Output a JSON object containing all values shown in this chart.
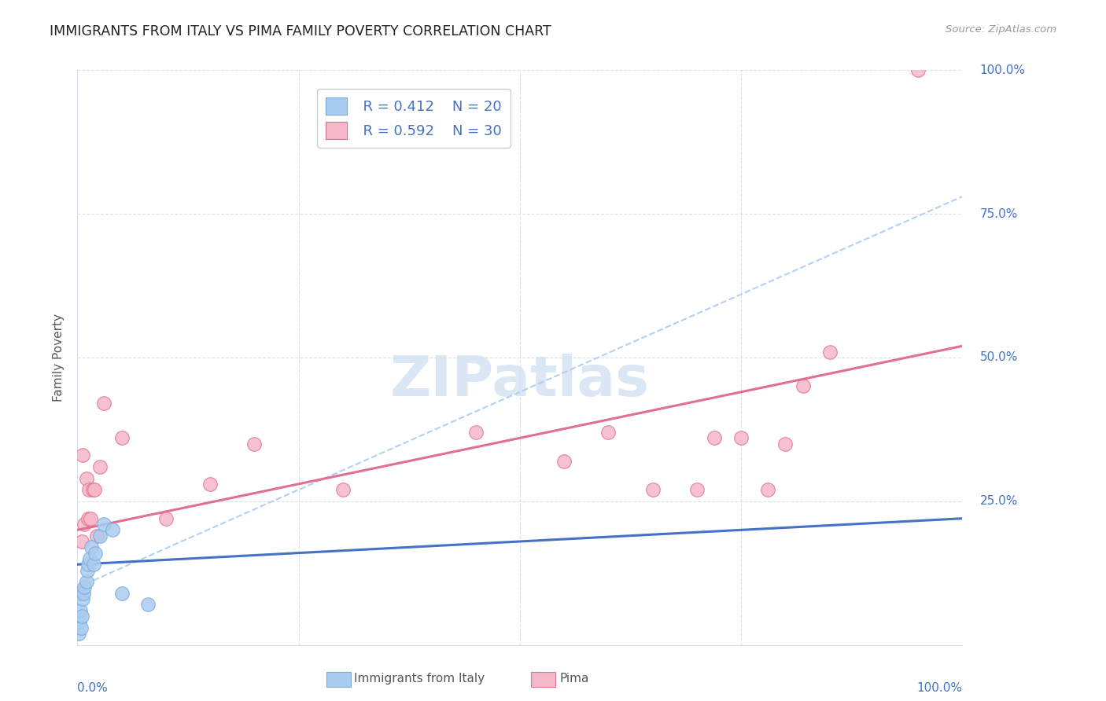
{
  "title": "IMMIGRANTS FROM ITALY VS PIMA FAMILY POVERTY CORRELATION CHART",
  "source": "Source: ZipAtlas.com",
  "ylabel": "Family Poverty",
  "yticks_labels": [
    "0.0%",
    "25.0%",
    "50.0%",
    "75.0%",
    "100.0%"
  ],
  "ytick_vals": [
    0,
    25,
    50,
    75,
    100
  ],
  "xlim": [
    0,
    100
  ],
  "ylim": [
    0,
    100
  ],
  "italy_color": "#aaccf0",
  "italy_edge_color": "#7aaad8",
  "pima_color": "#f5b8c8",
  "pima_edge_color": "#e07090",
  "italy_line_color": "#4472c4",
  "pima_line_color": "#e07090",
  "dash_line_color": "#aaccf0",
  "italy_x": [
    0.1,
    0.2,
    0.3,
    0.4,
    0.5,
    0.6,
    0.7,
    0.8,
    1.0,
    1.1,
    1.2,
    1.4,
    1.6,
    1.8,
    2.0,
    2.5,
    3.0,
    4.0,
    5.0,
    8.0
  ],
  "italy_y": [
    2.0,
    4.0,
    6.0,
    3.0,
    5.0,
    8.0,
    9.0,
    10.0,
    11.0,
    13.0,
    14.0,
    15.0,
    17.0,
    14.0,
    16.0,
    19.0,
    21.0,
    20.0,
    9.0,
    7.0
  ],
  "pima_x": [
    0.3,
    0.5,
    0.6,
    0.8,
    1.0,
    1.2,
    1.3,
    1.5,
    1.7,
    1.9,
    2.2,
    2.5,
    3.0,
    5.0,
    10.0,
    15.0,
    20.0,
    30.0,
    45.0,
    55.0,
    60.0,
    65.0,
    70.0,
    72.0,
    75.0,
    78.0,
    80.0,
    82.0,
    85.0,
    95.0
  ],
  "pima_y": [
    9.0,
    18.0,
    33.0,
    21.0,
    29.0,
    22.0,
    27.0,
    22.0,
    27.0,
    27.0,
    19.0,
    31.0,
    42.0,
    36.0,
    22.0,
    28.0,
    35.0,
    27.0,
    37.0,
    32.0,
    37.0,
    27.0,
    27.0,
    36.0,
    36.0,
    27.0,
    35.0,
    45.0,
    51.0,
    100.0
  ],
  "italy_line_x0": 0,
  "italy_line_y0": 14.0,
  "italy_line_x1": 100,
  "italy_line_y1": 22.0,
  "pima_line_x0": 0,
  "pima_line_y0": 20.0,
  "pima_line_x1": 100,
  "pima_line_y1": 52.0,
  "dash_line_x0": 0,
  "dash_line_y0": 10.0,
  "dash_line_x1": 100,
  "dash_line_y1": 78.0,
  "background_color": "#ffffff",
  "grid_color": "#dde0e8",
  "title_color": "#222222",
  "axis_label_color": "#4472c4",
  "label_color": "#555555",
  "rn_color": "#4472c4",
  "watermark_color": "#ccddf0",
  "legend_r_italy": "R = 0.412",
  "legend_n_italy": "N = 20",
  "legend_r_pima": "R = 0.592",
  "legend_n_pima": "N = 30",
  "source_text": "Source: ZipAtlas.com",
  "legend_italy_label": "Immigrants from Italy",
  "legend_pima_label": "Pima"
}
